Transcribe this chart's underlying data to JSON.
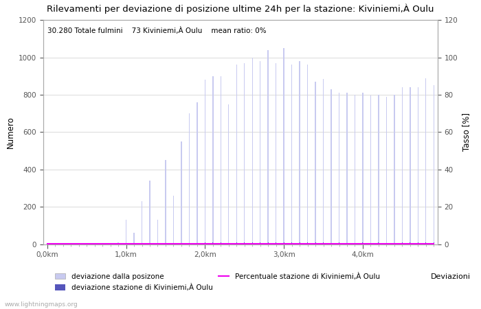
{
  "title": "Rilevamenti per deviazione di posizione ultime 24h per la stazione: Kiviniemi,À Oulu",
  "subtitle": "30.280 Totale fulmini    73 Kiviniemi,À Oulu    mean ratio: 0%",
  "ylabel_left": "Numero",
  "ylabel_right": "Tasso [%]",
  "xlabel_right": "Deviazioni",
  "ylim_left": [
    0,
    1200
  ],
  "ylim_right": [
    0,
    120
  ],
  "watermark": "www.lightningmaps.org",
  "bar_color_light": "#c8caf0",
  "bar_color_dark": "#5555bb",
  "line_color": "#ee00ee",
  "xtick_labels": [
    "0,0km",
    "1,0km",
    "2,0km",
    "3,0km",
    "4,0km"
  ],
  "xtick_positions": [
    0,
    10,
    20,
    30,
    40
  ],
  "legend_label_1": "deviazione dalla posizone",
  "legend_label_2": "deviazione stazione di Kiviniemi,À Oulu",
  "legend_label_3": "Percentuale stazione di Kiviniemi,À Oulu",
  "bar_heights": [
    5,
    5,
    5,
    5,
    5,
    5,
    5,
    5,
    5,
    10,
    130,
    60,
    230,
    340,
    130,
    450,
    260,
    550,
    700,
    760,
    880,
    900,
    900,
    750,
    960,
    970,
    1000,
    980,
    1040,
    970,
    1050,
    960,
    980,
    960,
    870,
    885,
    830,
    810,
    810,
    800,
    810,
    795,
    800,
    790,
    800,
    840,
    840,
    840,
    890,
    850
  ],
  "station_heights": [
    0,
    0,
    0,
    0,
    0,
    0,
    0,
    0,
    0,
    0,
    1,
    1,
    2,
    3,
    1,
    4,
    2,
    5,
    6,
    7,
    8,
    8,
    8,
    7,
    9,
    9,
    9,
    9,
    10,
    9,
    10,
    9,
    9,
    9,
    8,
    8,
    8,
    8,
    8,
    7,
    8,
    7,
    8,
    7,
    7,
    8,
    8,
    8,
    8,
    8
  ],
  "line_values": [
    0.3,
    0.3,
    0.3,
    0.3,
    0.3,
    0.3,
    0.3,
    0.3,
    0.3,
    0.3,
    0.3,
    0.3,
    0.3,
    0.3,
    0.3,
    0.3,
    0.3,
    0.3,
    0.3,
    0.3,
    0.3,
    0.3,
    0.3,
    0.3,
    0.3,
    0.3,
    0.3,
    0.3,
    0.3,
    0.3,
    0.3,
    0.3,
    0.3,
    0.3,
    0.3,
    0.3,
    0.3,
    0.3,
    0.3,
    0.3,
    0.3,
    0.3,
    0.3,
    0.3,
    0.3,
    0.3,
    0.3,
    0.3,
    0.3,
    0.3
  ],
  "n_bars": 50,
  "bar_width": 0.12,
  "station_bar_width": 0.08,
  "background_color": "#ffffff",
  "grid_color": "#cccccc",
  "spine_color": "#aaaaaa",
  "title_fontsize": 9.5,
  "subtitle_fontsize": 7.5,
  "tick_fontsize": 7.5,
  "ylabel_fontsize": 8.5,
  "legend_fontsize": 7.5,
  "watermark_fontsize": 6.5,
  "watermark_color": "#aaaaaa"
}
